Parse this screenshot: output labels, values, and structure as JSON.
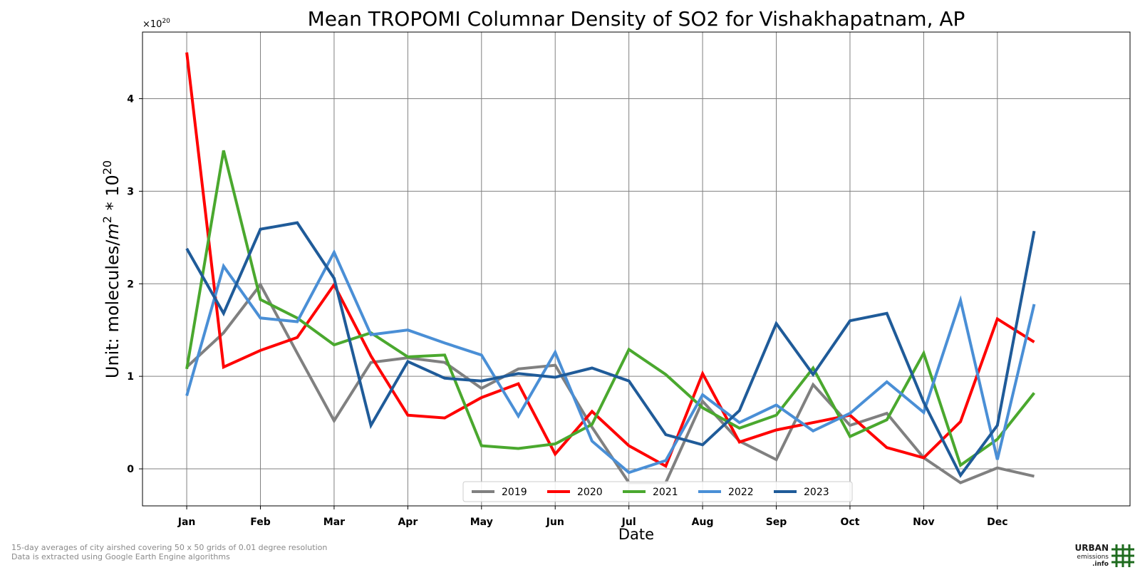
{
  "colors": {
    "2019": "#808080",
    "2020": "#ff0000",
    "2021": "#4aa82e",
    "2022": "#4a8fd6",
    "2023": "#1f5b99",
    "logo": "#1e6b1e"
  },
  "footnotes": {
    "line1": "15-day averages of city airshed covering 50 x 50 grids of 0.01 degree resolution",
    "line2": "Data is extracted using Google Earth Engine algorithms"
  },
  "logo": {
    "line1": "URBAN",
    "line2": "emissions",
    "line3": ".info",
    "icon": "grid-hash-icon"
  },
  "chart_data": {
    "type": "line",
    "title": "Mean TROPOMI Columnar Density of SO2 for Vishakhapatnam, AP",
    "xlabel": "Date",
    "ylabel_prefix": "Unit: molecules/",
    "ylabel_unit_base": "m",
    "ylabel_unit_exp": "2",
    "ylabel_mult": " * 10",
    "ylabel_mult_exp": "20",
    "offset_base": "×10",
    "offset_exp": "20",
    "categories": [
      "Jan",
      "Feb",
      "Mar",
      "Apr",
      "May",
      "Jun",
      "Jul",
      "Aug",
      "Sep",
      "Oct",
      "Nov",
      "Dec"
    ],
    "x": [
      1,
      1.5,
      2,
      2.5,
      3,
      3.5,
      4,
      4.5,
      5,
      5.5,
      6,
      6.5,
      7,
      7.5,
      8,
      8.5,
      9,
      9.5,
      10,
      10.5,
      11,
      11.5,
      12,
      12.5
    ],
    "xlim": [
      0.4,
      13.8
    ],
    "ylim": [
      -0.4,
      4.72
    ],
    "yticks": [
      0,
      1,
      2,
      3,
      4
    ],
    "grid": true,
    "legend_position": "bottom-center",
    "series": [
      {
        "name": "2019",
        "values": [
          1.1,
          1.47,
          1.99,
          1.25,
          0.52,
          1.15,
          1.2,
          1.15,
          0.87,
          1.08,
          1.12,
          0.45,
          -0.15,
          -0.15,
          0.73,
          0.3,
          0.1,
          0.91,
          0.47,
          0.6,
          0.12,
          -0.15,
          0.01,
          -0.08
        ]
      },
      {
        "name": "2020",
        "values": [
          4.5,
          1.1,
          1.28,
          1.42,
          1.99,
          1.22,
          0.58,
          0.55,
          0.77,
          0.92,
          0.16,
          0.62,
          0.25,
          0.03,
          1.03,
          0.29,
          0.42,
          0.5,
          0.58,
          0.23,
          0.12,
          0.51,
          1.62,
          1.37
        ]
      },
      {
        "name": "2021",
        "values": [
          1.08,
          3.44,
          1.83,
          1.63,
          1.34,
          1.47,
          1.21,
          1.23,
          0.25,
          0.22,
          0.27,
          0.48,
          1.29,
          1.02,
          0.66,
          0.44,
          0.58,
          1.09,
          0.35,
          0.53,
          1.25,
          0.04,
          0.32,
          0.82
        ]
      },
      {
        "name": "2022",
        "values": [
          0.79,
          2.19,
          1.63,
          1.59,
          2.34,
          1.45,
          1.5,
          1.36,
          1.23,
          0.57,
          1.26,
          0.3,
          -0.04,
          0.09,
          0.8,
          0.5,
          0.69,
          0.41,
          0.6,
          0.94,
          0.61,
          1.82,
          0.1,
          1.78
        ]
      },
      {
        "name": "2023",
        "values": [
          2.38,
          1.68,
          2.59,
          2.66,
          2.06,
          0.47,
          1.16,
          0.98,
          0.95,
          1.03,
          0.99,
          1.09,
          0.95,
          0.37,
          0.26,
          0.63,
          1.57,
          1.02,
          1.6,
          1.68,
          0.72,
          -0.07,
          0.47,
          2.57
        ]
      }
    ]
  }
}
